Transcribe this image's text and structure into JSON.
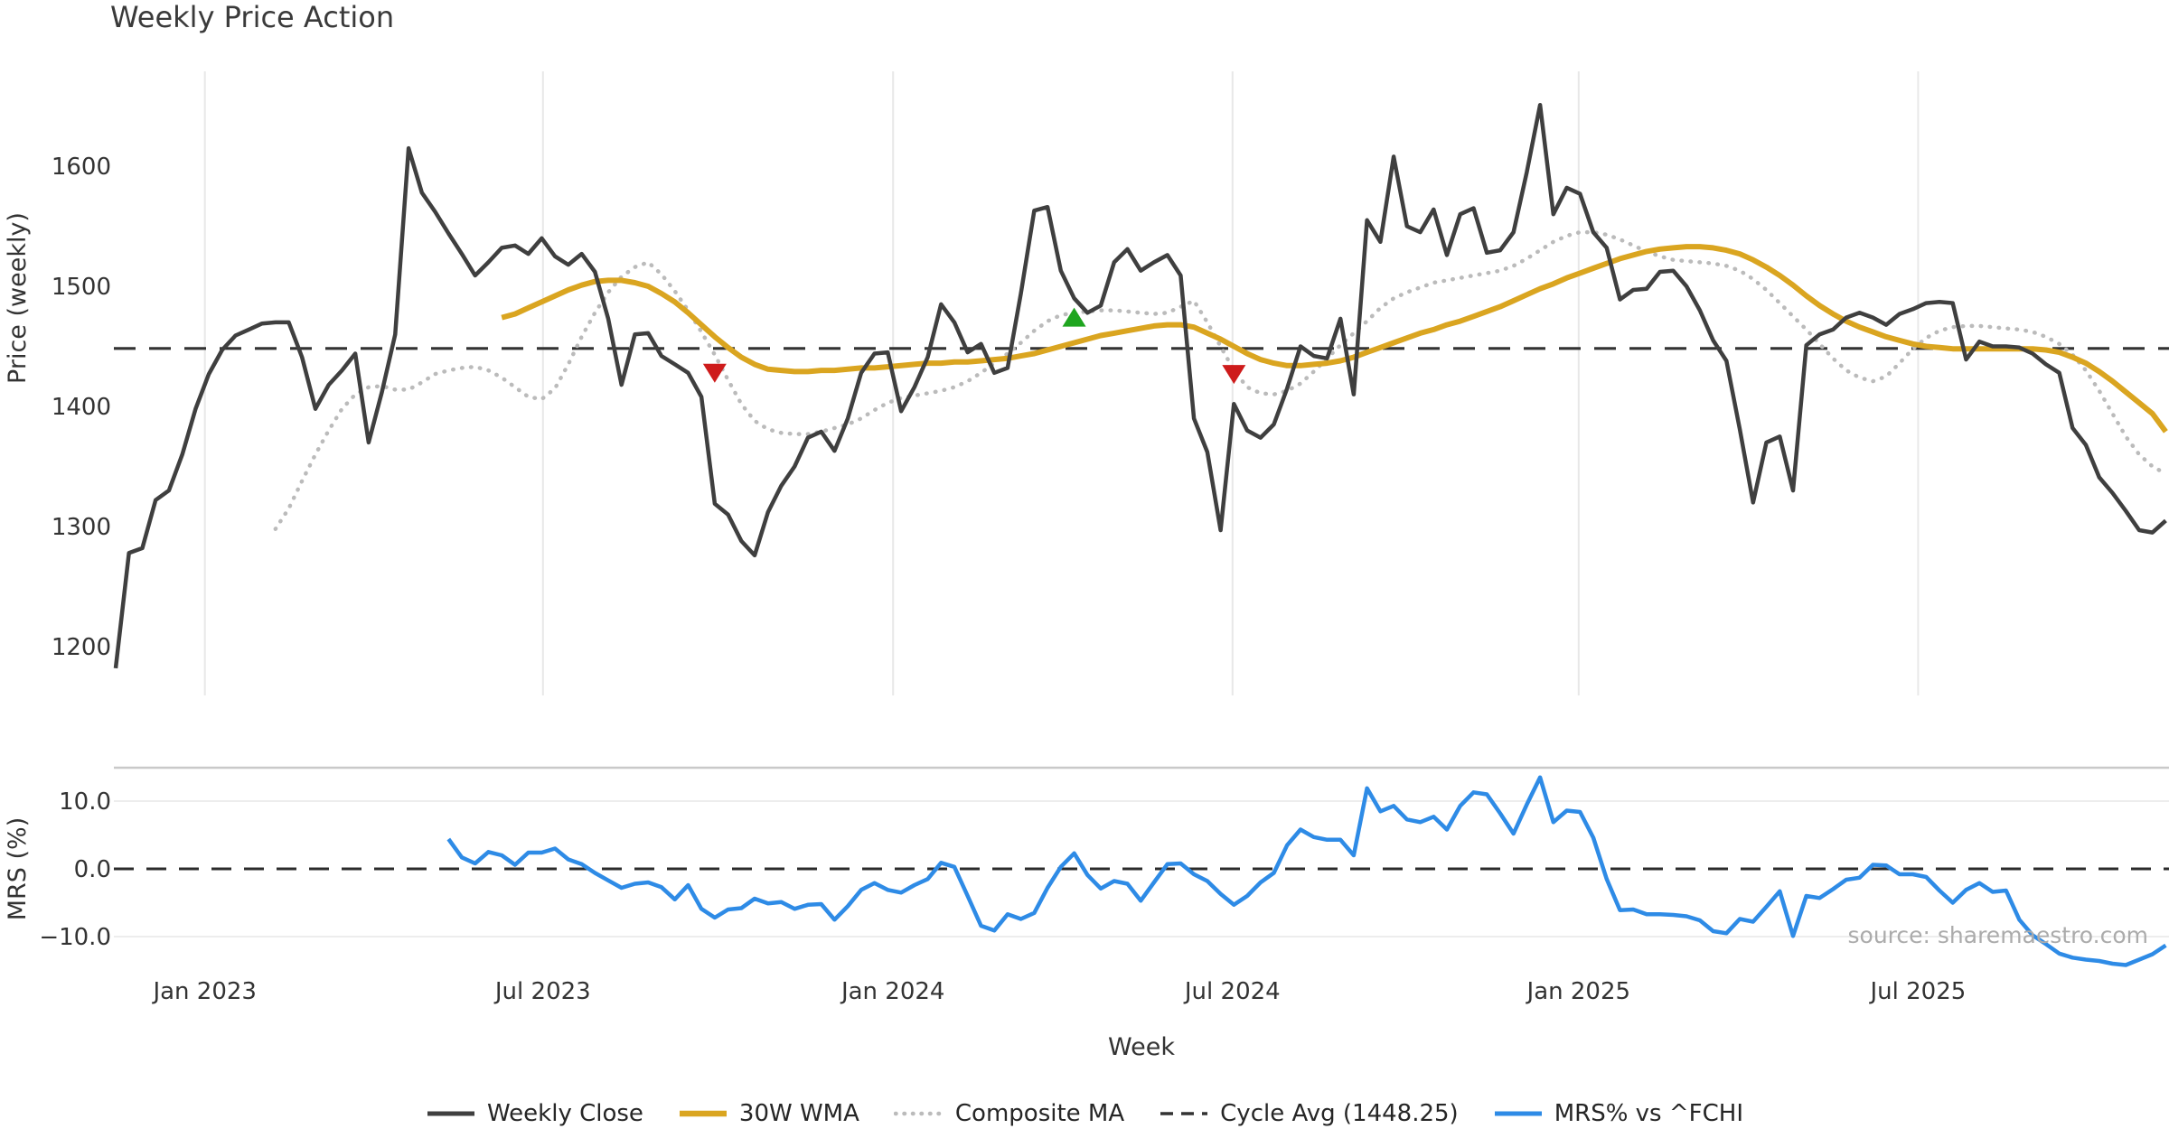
{
  "title": "Weekly Price Action",
  "source": "source: sharemaestro.com",
  "legend": {
    "items": [
      {
        "label": "Weekly Close",
        "color": "#3F3F3F",
        "style": "solid",
        "width": 5
      },
      {
        "label": "30W WMA",
        "color": "#DAA520",
        "style": "solid",
        "width": 6.5
      },
      {
        "label": "Composite MA",
        "color": "#BBBBBB",
        "style": "dotted",
        "width": 4.5
      },
      {
        "label": "Cycle Avg (1448.25)",
        "color": "#333333",
        "style": "dashed",
        "width": 3.5
      },
      {
        "label": "MRS% vs ^FCHI",
        "color": "#2E8BE6",
        "style": "solid",
        "width": 5
      }
    ]
  },
  "chart_data": [
    {
      "type": "line",
      "panel": "price",
      "title": "Weekly Price Action",
      "xlabel": "Week",
      "ylabel": "Price (weekly)",
      "ylim": [
        1159,
        1679
      ],
      "grid": "vertical-only",
      "legend_position": "bottom-center",
      "cycle_avg": 1448.25,
      "yticks": [
        {
          "label": "1600",
          "value": 1600
        },
        {
          "label": "1500",
          "value": 1500
        },
        {
          "label": "1400",
          "value": 1400
        },
        {
          "label": "1300",
          "value": 1300
        },
        {
          "label": "1200",
          "value": 1200
        }
      ],
      "xticks": {
        "labels": [
          "Jan 2023",
          "Jul 2023",
          "Jan 2024",
          "Jul 2024",
          "Jan 2025",
          "Jul 2025"
        ],
        "week_positions": [
          6.7,
          32.1,
          58.4,
          83.9,
          109.9,
          135.4
        ]
      },
      "series": [
        {
          "name": "Weekly Close",
          "color": "#3F3F3F",
          "style": "solid",
          "width": 4.5,
          "start_week": 0,
          "values": [
            1182,
            1278,
            1282,
            1322,
            1330,
            1360,
            1398,
            1427,
            1447,
            1459,
            1464,
            1469,
            1470,
            1470,
            1441,
            1398,
            1418,
            1430,
            1444,
            1370,
            1412,
            1460,
            1615,
            1578,
            1562,
            1544,
            1527,
            1509,
            1520,
            1532,
            1534,
            1527,
            1540,
            1525,
            1518,
            1527,
            1512,
            1473,
            1418,
            1460,
            1461,
            1442,
            1435,
            1428,
            1408,
            1319,
            1310,
            1288,
            1276,
            1312,
            1334,
            1350,
            1374,
            1379,
            1363,
            1390,
            1428,
            1444,
            1445,
            1396,
            1416,
            1441,
            1485,
            1470,
            1445,
            1452,
            1428,
            1432,
            1494,
            1563,
            1566,
            1513,
            1490,
            1478,
            1484,
            1520,
            1531,
            1513,
            1520,
            1526,
            1509,
            1390,
            1362,
            1297,
            1402,
            1380,
            1374,
            1385,
            1415,
            1450,
            1442,
            1440,
            1473,
            1410,
            1555,
            1537,
            1608,
            1550,
            1545,
            1564,
            1526,
            1560,
            1565,
            1528,
            1530,
            1545,
            1595,
            1651,
            1560,
            1582,
            1577,
            1545,
            1532,
            1489,
            1497,
            1498,
            1512,
            1513,
            1500,
            1480,
            1455,
            1438,
            1381,
            1320,
            1370,
            1375,
            1330,
            1451,
            1460,
            1464,
            1474,
            1478,
            1474,
            1468,
            1477,
            1481,
            1486,
            1487,
            1486,
            1439,
            1454,
            1450,
            1450,
            1449,
            1444,
            1435,
            1428,
            1382,
            1368,
            1341,
            1328,
            1313,
            1297,
            1295,
            1305
          ]
        },
        {
          "name": "30W WMA",
          "color": "#DAA520",
          "style": "solid",
          "width": 6,
          "start_week": 29,
          "values": [
            1474,
            1477,
            1482,
            1487,
            1492,
            1497,
            1501,
            1504,
            1505,
            1505,
            1503,
            1500,
            1494,
            1487,
            1478,
            1468,
            1458,
            1449,
            1441,
            1435,
            1431,
            1430,
            1429,
            1429,
            1430,
            1430,
            1431,
            1432,
            1432,
            1433,
            1434,
            1435,
            1436,
            1436,
            1437,
            1437,
            1438,
            1439,
            1440,
            1442,
            1444,
            1447,
            1450,
            1453,
            1456,
            1459,
            1461,
            1463,
            1465,
            1467,
            1468,
            1468,
            1466,
            1461,
            1456,
            1450,
            1444,
            1439,
            1436,
            1434,
            1434,
            1435,
            1436,
            1438,
            1441,
            1445,
            1449,
            1453,
            1457,
            1461,
            1464,
            1468,
            1471,
            1475,
            1479,
            1483,
            1488,
            1493,
            1498,
            1502,
            1507,
            1511,
            1515,
            1519,
            1523,
            1526,
            1529,
            1531,
            1532,
            1533,
            1533,
            1532,
            1530,
            1527,
            1522,
            1516,
            1509,
            1501,
            1492,
            1484,
            1477,
            1471,
            1466,
            1462,
            1458,
            1455,
            1452,
            1450,
            1449,
            1448,
            1448,
            1448,
            1448,
            1448,
            1448,
            1448,
            1447,
            1445,
            1441,
            1436,
            1429,
            1421,
            1412,
            1403,
            1394,
            1379
          ]
        },
        {
          "name": "Composite MA",
          "color": "#BBBBBB",
          "style": "dotted",
          "width": 4.5,
          "start_week": 12,
          "values": [
            1298,
            1315,
            1338,
            1360,
            1380,
            1398,
            1410,
            1416,
            1417,
            1414,
            1414,
            1420,
            1427,
            1430,
            1432,
            1433,
            1430,
            1424,
            1416,
            1408,
            1406,
            1415,
            1435,
            1458,
            1478,
            1495,
            1508,
            1516,
            1520,
            1510,
            1496,
            1480,
            1462,
            1443,
            1422,
            1402,
            1388,
            1381,
            1378,
            1377,
            1377,
            1379,
            1382,
            1385,
            1390,
            1397,
            1403,
            1407,
            1409,
            1411,
            1413,
            1416,
            1421,
            1428,
            1436,
            1444,
            1453,
            1463,
            1471,
            1476,
            1478,
            1479,
            1480,
            1480,
            1479,
            1478,
            1477,
            1478,
            1483,
            1488,
            1470,
            1450,
            1430,
            1416,
            1411,
            1410,
            1413,
            1419,
            1429,
            1440,
            1451,
            1461,
            1471,
            1482,
            1490,
            1495,
            1499,
            1503,
            1505,
            1507,
            1509,
            1511,
            1513,
            1517,
            1523,
            1530,
            1537,
            1542,
            1545,
            1545,
            1543,
            1539,
            1534,
            1529,
            1525,
            1522,
            1521,
            1520,
            1519,
            1517,
            1513,
            1506,
            1497,
            1486,
            1475,
            1464,
            1452,
            1440,
            1430,
            1424,
            1421,
            1425,
            1436,
            1448,
            1457,
            1463,
            1466,
            1467,
            1467,
            1466,
            1465,
            1464,
            1462,
            1458,
            1452,
            1443,
            1430,
            1413,
            1394,
            1375,
            1360,
            1350,
            1344
          ]
        },
        {
          "name": "Cycle Avg (1448.25)",
          "color": "#333333",
          "style": "dashed",
          "width": 3.2,
          "value": 1448.25
        }
      ],
      "markers": [
        {
          "week": 45,
          "price": 1428,
          "type": "sell",
          "color": "#CE1B1B"
        },
        {
          "week": 72,
          "price": 1474,
          "type": "buy",
          "color": "#1FA51F"
        },
        {
          "week": 84,
          "price": 1427,
          "type": "sell",
          "color": "#CE1B1B"
        }
      ]
    },
    {
      "type": "line",
      "panel": "mrs",
      "ylabel": "MRS (%)",
      "ylim": [
        -15.1,
        14.9
      ],
      "zero_line": 0,
      "yticks": [
        {
          "label": "10.0",
          "value": 10
        },
        {
          "label": "0.0",
          "value": 0
        },
        {
          "label": "−10.0",
          "value": -10
        }
      ],
      "series": [
        {
          "name": "MRS% vs ^FCHI",
          "color": "#2E8BE6",
          "style": "solid",
          "width": 4.5,
          "start_week": 25,
          "values": [
            4.4,
            1.7,
            0.8,
            2.5,
            2.0,
            0.6,
            2.4,
            2.4,
            3.0,
            1.4,
            0.7,
            -0.6,
            -1.7,
            -2.8,
            -2.2,
            -2.0,
            -2.7,
            -4.5,
            -2.4,
            -5.9,
            -7.2,
            -6.0,
            -5.8,
            -4.4,
            -5.1,
            -4.9,
            -5.9,
            -5.3,
            -5.2,
            -7.5,
            -5.5,
            -3.1,
            -2.1,
            -3.1,
            -3.5,
            -2.4,
            -1.5,
            0.9,
            0.3,
            -4.0,
            -8.4,
            -9.1,
            -6.7,
            -7.4,
            -6.5,
            -2.8,
            0.3,
            2.3,
            -0.9,
            -2.9,
            -1.8,
            -2.2,
            -4.7,
            -2.0,
            0.7,
            0.8,
            -0.8,
            -1.8,
            -3.7,
            -5.3,
            -4.0,
            -2.0,
            -0.6,
            3.5,
            5.8,
            4.7,
            4.3,
            4.3,
            2.0,
            11.9,
            8.5,
            9.3,
            7.3,
            6.9,
            7.7,
            5.8,
            9.3,
            11.3,
            11.0,
            8.2,
            5.2,
            9.5,
            13.5,
            6.9,
            8.6,
            8.4,
            4.6,
            -1.5,
            -6.1,
            -6.0,
            -6.7,
            -6.7,
            -6.8,
            -7.0,
            -7.6,
            -9.2,
            -9.5,
            -7.4,
            -7.8,
            -5.6,
            -3.3,
            -9.9,
            -4.0,
            -4.3,
            -3.0,
            -1.6,
            -1.3,
            0.6,
            0.5,
            -0.8,
            -0.8,
            -1.2,
            -3.2,
            -5.0,
            -3.1,
            -2.1,
            -3.4,
            -3.2,
            -7.5,
            -9.8,
            -11.1,
            -12.5,
            -13.1,
            -13.4,
            -13.6,
            -14.0,
            -14.2,
            -13.4,
            -12.6,
            -11.3
          ]
        }
      ]
    }
  ]
}
